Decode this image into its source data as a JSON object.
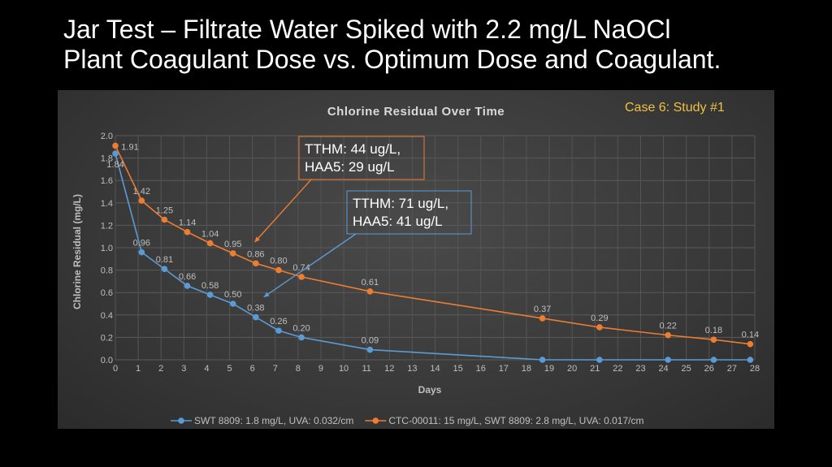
{
  "slide": {
    "title_line1": "Jar Test – Filtrate Water Spiked with 2.2 mg/L NaOCl",
    "title_line2": "Plant Coagulant Dose vs. Optimum Dose and Coagulant.",
    "case_label": "Case 6:  Study #1"
  },
  "chart_data": {
    "type": "line",
    "title": "Chlorine Residual Over Time",
    "xlabel": "Days",
    "ylabel": "Chlorine Residual (mg/L)",
    "xlim": [
      0,
      28
    ],
    "ylim": [
      0,
      2.0
    ],
    "xticks": [
      0,
      1,
      2,
      3,
      4,
      5,
      6,
      7,
      8,
      9,
      10,
      11,
      12,
      13,
      14,
      15,
      16,
      17,
      18,
      19,
      20,
      21,
      22,
      23,
      24,
      25,
      26,
      27,
      28
    ],
    "yticks": [
      0.0,
      0.2,
      0.4,
      0.6,
      0.8,
      1.0,
      1.2,
      1.4,
      1.6,
      1.8,
      2.0
    ],
    "grid": true,
    "legend_position": "bottom",
    "series": [
      {
        "name": "SWT 8809: 1.8 mg/L, UVA: 0.032/cm",
        "color": "#5b9bd5",
        "points": [
          {
            "x": 0,
            "y": 1.84,
            "label": "1.84"
          },
          {
            "x": 1.15,
            "y": 0.96,
            "label": "0.96"
          },
          {
            "x": 2.15,
            "y": 0.81,
            "label": "0.81"
          },
          {
            "x": 3.15,
            "y": 0.66,
            "label": "0.66"
          },
          {
            "x": 4.15,
            "y": 0.58,
            "label": "0.58"
          },
          {
            "x": 5.15,
            "y": 0.5,
            "label": "0.50"
          },
          {
            "x": 6.15,
            "y": 0.38,
            "label": "0.38"
          },
          {
            "x": 7.15,
            "y": 0.26,
            "label": "0.26"
          },
          {
            "x": 8.15,
            "y": 0.2,
            "label": "0.20"
          },
          {
            "x": 11.15,
            "y": 0.09,
            "label": "0.09"
          },
          {
            "x": 18.7,
            "y": 0.0,
            "label": ""
          },
          {
            "x": 21.2,
            "y": 0.0,
            "label": ""
          },
          {
            "x": 24.2,
            "y": 0.0,
            "label": ""
          },
          {
            "x": 26.2,
            "y": 0.0,
            "label": ""
          },
          {
            "x": 27.8,
            "y": 0.0,
            "label": ""
          }
        ]
      },
      {
        "name": "CTC-00011: 15 mg/L, SWT 8809: 2.8 mg/L, UVA: 0.017/cm",
        "color": "#ed7d31",
        "points": [
          {
            "x": 0,
            "y": 1.91,
            "label": "1.91"
          },
          {
            "x": 1.15,
            "y": 1.42,
            "label": "1.42"
          },
          {
            "x": 2.15,
            "y": 1.25,
            "label": "1.25"
          },
          {
            "x": 3.15,
            "y": 1.14,
            "label": "1.14"
          },
          {
            "x": 4.15,
            "y": 1.04,
            "label": "1.04"
          },
          {
            "x": 5.15,
            "y": 0.95,
            "label": "0.95"
          },
          {
            "x": 6.15,
            "y": 0.86,
            "label": "0.86"
          },
          {
            "x": 7.15,
            "y": 0.8,
            "label": "0.80"
          },
          {
            "x": 8.15,
            "y": 0.74,
            "label": "0.74"
          },
          {
            "x": 11.15,
            "y": 0.61,
            "label": "0.61"
          },
          {
            "x": 18.7,
            "y": 0.37,
            "label": "0.37"
          },
          {
            "x": 21.2,
            "y": 0.29,
            "label": "0.29"
          },
          {
            "x": 24.2,
            "y": 0.22,
            "label": "0.22"
          },
          {
            "x": 26.2,
            "y": 0.18,
            "label": "0.18"
          },
          {
            "x": 27.8,
            "y": 0.14,
            "label": "0.14"
          }
        ]
      }
    ],
    "annotations": [
      {
        "lines": [
          "TTHM: 44 ug/L,",
          "HAA5: 29 ug/L"
        ],
        "color": "#ed7d31",
        "arrow_to": {
          "x": 6.1,
          "y": 1.05
        }
      },
      {
        "lines": [
          "TTHM: 71 ug/L,",
          "HAA5: 41 ug/L"
        ],
        "color": "#5b9bd5",
        "arrow_to": {
          "x": 6.5,
          "y": 0.56
        }
      }
    ]
  }
}
